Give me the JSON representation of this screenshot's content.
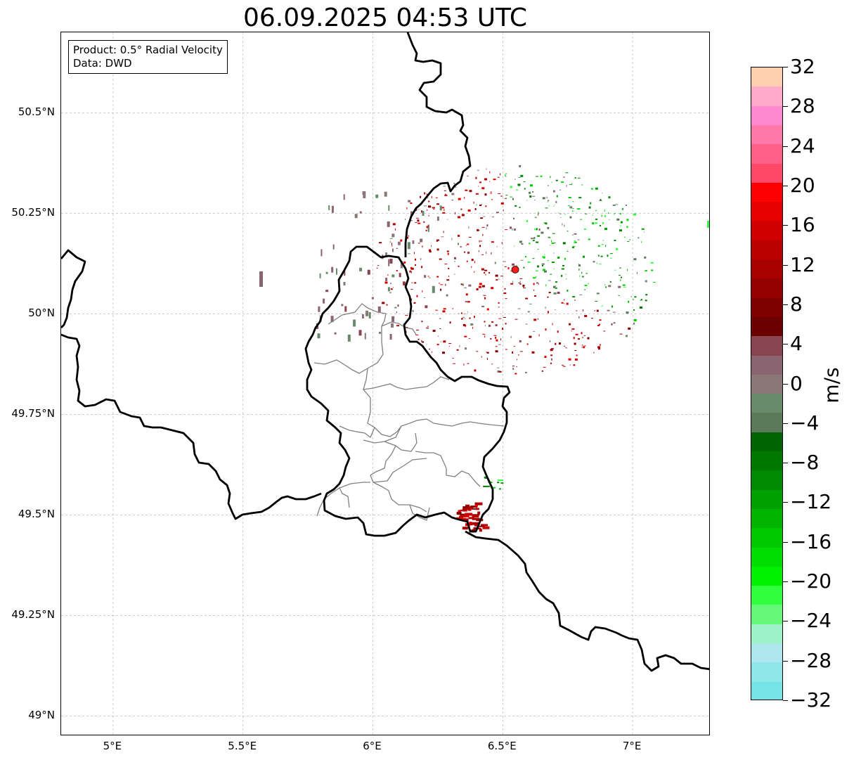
{
  "title": "06.09.2025 04:53 UTC",
  "info": {
    "product": "Product: 0.5° Radial Velocity",
    "source": "Data: DWD"
  },
  "map": {
    "lon_range": [
      4.8,
      7.3
    ],
    "lat_range": [
      48.95,
      50.7
    ],
    "lat_ticks": [
      {
        "value": 50.5,
        "label": "50.5°N"
      },
      {
        "value": 50.25,
        "label": "50.25°N"
      },
      {
        "value": 50.0,
        "label": "50°N"
      },
      {
        "value": 49.75,
        "label": "49.75°N"
      },
      {
        "value": 49.5,
        "label": "49.5°N"
      },
      {
        "value": 49.25,
        "label": "49.25°N"
      },
      {
        "value": 49.0,
        "label": "49°N"
      }
    ],
    "lon_ticks": [
      {
        "value": 5.0,
        "label": "5°E"
      },
      {
        "value": 5.5,
        "label": "5.5°E"
      },
      {
        "value": 6.0,
        "label": "6°E"
      },
      {
        "value": 6.5,
        "label": "6.5°E"
      },
      {
        "value": 7.0,
        "label": "7°E"
      }
    ],
    "radar_site": {
      "lon": 6.548,
      "lat": 50.11,
      "color": "#ff1a1a"
    },
    "gridline_color": "#b0b0b0",
    "border_color": "#000000",
    "district_color": "#808080"
  },
  "colorbar": {
    "unit": "m/s",
    "min": -32,
    "max": 32,
    "step": 4,
    "ticks": [
      32,
      28,
      24,
      20,
      16,
      12,
      8,
      4,
      0,
      -4,
      -8,
      -12,
      -16,
      -20,
      -24,
      -28,
      -32
    ],
    "tick_labels": [
      "32",
      "28",
      "24",
      "20",
      "16",
      "12",
      "8",
      "4",
      "0",
      "−4",
      "−8",
      "−12",
      "−16",
      "−20",
      "−24",
      "−28",
      "−32"
    ],
    "colors_top_to_bottom": [
      "#ffd0b0",
      "#ffaac8",
      "#ff88d0",
      "#ff78a8",
      "#ff6088",
      "#ff4868",
      "#ff0000",
      "#e60000",
      "#d00000",
      "#bb0000",
      "#a80000",
      "#940000",
      "#800000",
      "#6a0000",
      "#884450",
      "#8a6470",
      "#8a7878",
      "#6a8a6c",
      "#5a7a5a",
      "#006400",
      "#007800",
      "#008a00",
      "#00a000",
      "#00b400",
      "#00c800",
      "#00dc00",
      "#00f000",
      "#30ff40",
      "#64f878",
      "#9ef2c8",
      "#aee8ee",
      "#8ee6ea",
      "#74e4e6"
    ]
  }
}
